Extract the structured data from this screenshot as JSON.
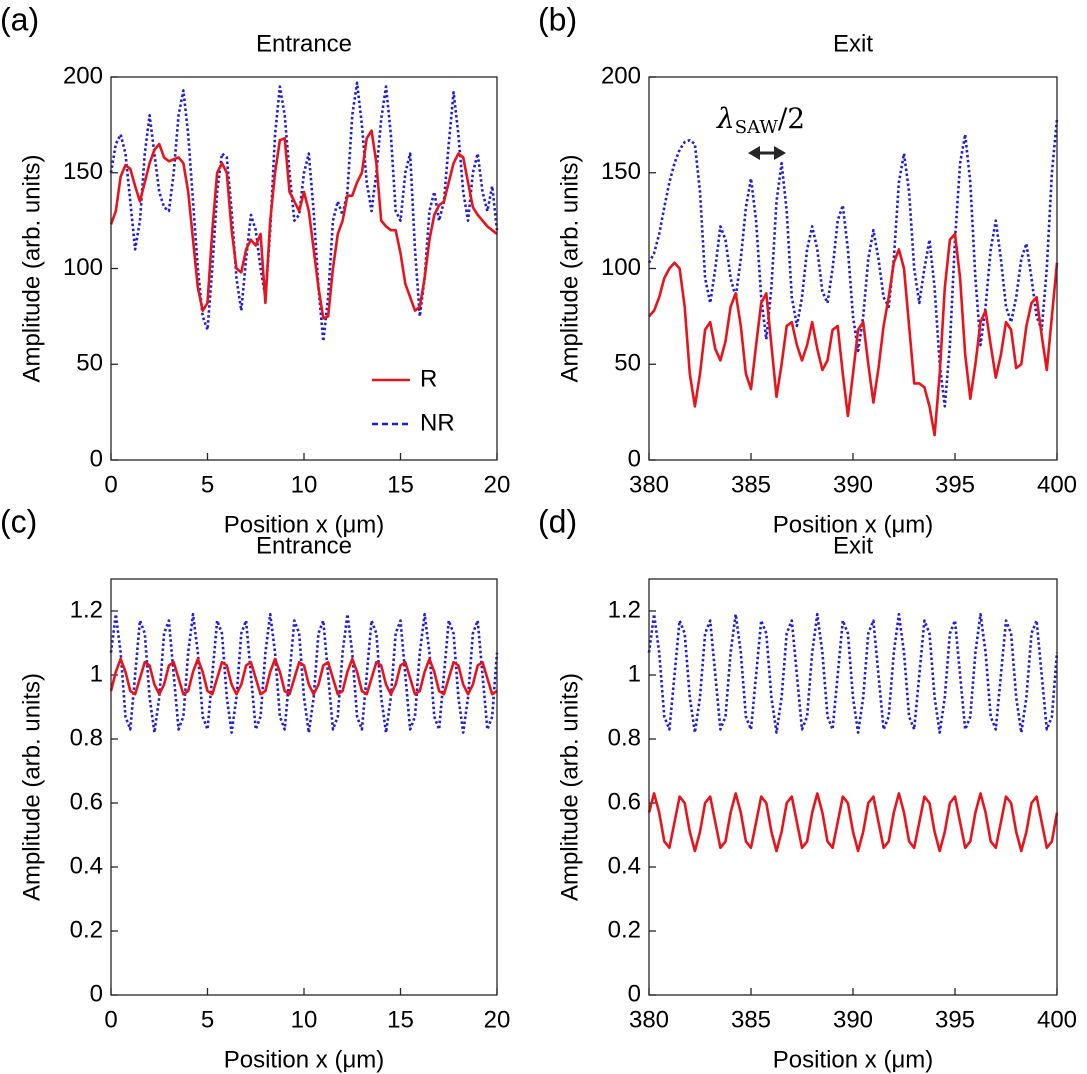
{
  "chart_data": [
    {
      "type": "line",
      "label": "(a)",
      "title": "Entrance",
      "xlabel": "Position x (μm)",
      "ylabel": "Amplitude (arb. units)",
      "xlim": [
        0,
        20
      ],
      "xticks": [
        0,
        5,
        10,
        15,
        20
      ],
      "ylim": [
        0,
        200
      ],
      "yticks": [
        0,
        50,
        100,
        150,
        200
      ],
      "legend": "lower right",
      "x": [
        0,
        0.25,
        0.5,
        0.75,
        1,
        1.25,
        1.5,
        1.75,
        2,
        2.25,
        2.5,
        2.75,
        3,
        3.25,
        3.5,
        3.75,
        4,
        4.25,
        4.5,
        4.75,
        5,
        5.25,
        5.5,
        5.75,
        6,
        6.25,
        6.5,
        6.75,
        7,
        7.25,
        7.5,
        7.75,
        8,
        8.25,
        8.5,
        8.75,
        9,
        9.25,
        9.5,
        9.75,
        10,
        10.25,
        10.5,
        10.75,
        11,
        11.25,
        11.5,
        11.75,
        12,
        12.25,
        12.5,
        12.75,
        13,
        13.25,
        13.5,
        13.75,
        14,
        14.25,
        14.5,
        14.75,
        15,
        15.25,
        15.5,
        15.75,
        16,
        16.25,
        16.5,
        16.75,
        17,
        17.25,
        17.5,
        17.75,
        18,
        18.25,
        18.5,
        18.75,
        19,
        19.25,
        19.5,
        19.75,
        20
      ],
      "series": [
        {
          "name": "R",
          "color": "#e8141c",
          "dash": "solid",
          "values": [
            123,
            130,
            148,
            154,
            152,
            143,
            135,
            145,
            155,
            162,
            165,
            158,
            156,
            157,
            158,
            155,
            140,
            115,
            90,
            78,
            82,
            120,
            150,
            155,
            150,
            120,
            100,
            98,
            110,
            115,
            112,
            118,
            82,
            125,
            150,
            167,
            168,
            140,
            135,
            130,
            140,
            130,
            110,
            90,
            74,
            75,
            100,
            118,
            125,
            138,
            138,
            145,
            150,
            168,
            172,
            155,
            125,
            122,
            120,
            120,
            108,
            92,
            85,
            78,
            80,
            95,
            115,
            128,
            133,
            135,
            145,
            155,
            160,
            158,
            145,
            132,
            128,
            125,
            122,
            120,
            118
          ]
        },
        {
          "name": "NR",
          "color": "#1f1fd0",
          "dash": "dotted",
          "values": [
            150,
            165,
            170,
            160,
            135,
            110,
            125,
            160,
            180,
            160,
            140,
            132,
            130,
            150,
            180,
            193,
            170,
            135,
            100,
            75,
            68,
            100,
            140,
            160,
            158,
            130,
            95,
            78,
            105,
            128,
            120,
            100,
            85,
            120,
            170,
            195,
            180,
            150,
            125,
            128,
            150,
            160,
            130,
            90,
            62,
            85,
            125,
            135,
            128,
            140,
            180,
            197,
            175,
            145,
            130,
            150,
            178,
            195,
            170,
            130,
            125,
            150,
            160,
            110,
            75,
            95,
            130,
            140,
            125,
            135,
            165,
            192,
            170,
            140,
            125,
            150,
            160,
            140,
            130,
            143,
            120
          ]
        }
      ]
    },
    {
      "type": "line",
      "label": "(b)",
      "title": "Exit",
      "xlabel": "Position x (μm)",
      "ylabel": "Amplitude (arb. units)",
      "xlim": [
        380,
        400
      ],
      "xticks": [
        380,
        385,
        390,
        395,
        400
      ],
      "ylim": [
        0,
        200
      ],
      "yticks": [
        0,
        50,
        100,
        150,
        200
      ],
      "annotation": [
        "λ",
        "SAW",
        "/2"
      ],
      "x": [
        380,
        380.25,
        380.5,
        380.75,
        381,
        381.25,
        381.5,
        381.75,
        382,
        382.25,
        382.5,
        382.75,
        383,
        383.25,
        383.5,
        383.75,
        384,
        384.25,
        384.5,
        384.75,
        385,
        385.25,
        385.5,
        385.75,
        386,
        386.25,
        386.5,
        386.75,
        387,
        387.25,
        387.5,
        387.75,
        388,
        388.25,
        388.5,
        388.75,
        389,
        389.25,
        389.5,
        389.75,
        390,
        390.25,
        390.5,
        390.75,
        391,
        391.25,
        391.5,
        391.75,
        392,
        392.25,
        392.5,
        392.75,
        393,
        393.25,
        393.5,
        393.75,
        394,
        394.25,
        394.5,
        394.75,
        395,
        395.25,
        395.5,
        395.75,
        396,
        396.25,
        396.5,
        396.75,
        397,
        397.25,
        397.5,
        397.75,
        398,
        398.25,
        398.5,
        398.75,
        399,
        399.25,
        399.5,
        399.75,
        400
      ],
      "series": [
        {
          "color": "#e8141c",
          "dash": "solid",
          "values": [
            75,
            78,
            85,
            95,
            100,
            103,
            100,
            80,
            45,
            28,
            45,
            68,
            72,
            58,
            52,
            62,
            80,
            87,
            70,
            45,
            37,
            60,
            82,
            87,
            60,
            33,
            50,
            70,
            72,
            60,
            52,
            60,
            72,
            58,
            47,
            52,
            68,
            70,
            45,
            23,
            45,
            68,
            72,
            50,
            30,
            48,
            70,
            85,
            103,
            110,
            100,
            70,
            40,
            40,
            38,
            28,
            13,
            45,
            90,
            115,
            118,
            95,
            55,
            32,
            50,
            72,
            78,
            60,
            43,
            55,
            72,
            68,
            48,
            50,
            70,
            82,
            85,
            65,
            47,
            75,
            103
          ]
        },
        {
          "color": "#1f1fd0",
          "dash": "dotted",
          "values": [
            103,
            108,
            118,
            132,
            145,
            155,
            162,
            166,
            167,
            165,
            140,
            95,
            82,
            100,
            122,
            115,
            95,
            85,
            105,
            132,
            147,
            125,
            85,
            63,
            90,
            135,
            155,
            130,
            85,
            70,
            85,
            110,
            122,
            110,
            88,
            82,
            100,
            125,
            133,
            110,
            75,
            57,
            75,
            105,
            120,
            105,
            85,
            80,
            105,
            145,
            160,
            140,
            100,
            82,
            100,
            115,
            90,
            50,
            28,
            60,
            115,
            155,
            170,
            145,
            95,
            60,
            80,
            110,
            125,
            105,
            80,
            72,
            85,
            105,
            113,
            95,
            75,
            68,
            100,
            150,
            178
          ]
        }
      ]
    },
    {
      "type": "line",
      "label": "(c)",
      "title": "Entrance",
      "xlabel": "Position x (μm)",
      "ylabel": "Amplitude (arb. units)",
      "xlim": [
        0,
        20
      ],
      "xticks": [
        0,
        5,
        10,
        15,
        20
      ],
      "ylim": [
        0,
        1.3
      ],
      "yticks": [
        0,
        0.2,
        0.4,
        0.6,
        0.8,
        1,
        1.2
      ],
      "x": [
        0,
        0.25,
        0.5,
        0.75,
        1,
        1.25,
        1.5,
        1.75,
        2,
        2.25,
        2.5,
        2.75,
        3,
        3.25,
        3.5,
        3.75,
        4,
        4.25,
        4.5,
        4.75,
        5,
        5.25,
        5.5,
        5.75,
        6,
        6.25,
        6.5,
        6.75,
        7,
        7.25,
        7.5,
        7.75,
        8,
        8.25,
        8.5,
        8.75,
        9,
        9.25,
        9.5,
        9.75,
        10,
        10.25,
        10.5,
        10.75,
        11,
        11.25,
        11.5,
        11.75,
        12,
        12.25,
        12.5,
        12.75,
        13,
        13.25,
        13.5,
        13.75,
        14,
        14.25,
        14.5,
        14.75,
        15,
        15.25,
        15.5,
        15.75,
        16,
        16.25,
        16.5,
        16.75,
        17,
        17.25,
        17.5,
        17.75,
        18,
        18.25,
        18.5,
        18.75,
        19,
        19.25,
        19.5,
        19.75,
        20
      ],
      "series": [
        {
          "color": "#e8141c",
          "dash": "solid",
          "values": [
            0.95,
            1.01,
            1.05,
            1.01,
            0.95,
            0.94,
            0.99,
            1.04,
            1.03,
            0.97,
            0.94,
            0.97,
            1.03,
            1.04,
            0.99,
            0.94,
            0.95,
            1.01,
            1.05,
            1.01,
            0.95,
            0.94,
            0.99,
            1.04,
            1.03,
            0.97,
            0.94,
            0.97,
            1.03,
            1.04,
            0.99,
            0.94,
            0.95,
            1.01,
            1.05,
            1.01,
            0.95,
            0.94,
            0.99,
            1.04,
            1.03,
            0.97,
            0.94,
            0.97,
            1.03,
            1.04,
            0.99,
            0.94,
            0.95,
            1.01,
            1.05,
            1.01,
            0.95,
            0.94,
            0.99,
            1.04,
            1.03,
            0.97,
            0.94,
            0.97,
            1.03,
            1.04,
            0.99,
            0.94,
            0.95,
            1.01,
            1.05,
            1.01,
            0.95,
            0.94,
            0.99,
            1.04,
            1.03,
            0.97,
            0.94,
            0.97,
            1.03,
            1.04,
            0.99,
            0.94,
            0.95
          ]
        },
        {
          "color": "#1f1fd0",
          "dash": "dotted",
          "values": [
            1.07,
            1.19,
            1.07,
            0.87,
            0.83,
            1.0,
            1.17,
            1.13,
            0.93,
            0.82,
            0.93,
            1.13,
            1.17,
            1.0,
            0.83,
            0.87,
            1.07,
            1.19,
            1.07,
            0.87,
            0.83,
            1.0,
            1.17,
            1.13,
            0.93,
            0.82,
            0.93,
            1.13,
            1.17,
            1.0,
            0.83,
            0.87,
            1.07,
            1.19,
            1.07,
            0.87,
            0.83,
            1.0,
            1.17,
            1.13,
            0.93,
            0.82,
            0.93,
            1.13,
            1.17,
            1.0,
            0.83,
            0.87,
            1.07,
            1.19,
            1.07,
            0.87,
            0.83,
            1.0,
            1.17,
            1.13,
            0.93,
            0.82,
            0.93,
            1.13,
            1.17,
            1.0,
            0.83,
            0.87,
            1.07,
            1.19,
            1.07,
            0.87,
            0.83,
            1.0,
            1.17,
            1.13,
            0.93,
            0.82,
            0.93,
            1.13,
            1.17,
            1.0,
            0.83,
            0.87,
            1.07
          ]
        }
      ]
    },
    {
      "type": "line",
      "label": "(d)",
      "title": "Exit",
      "xlabel": "Position x (μm)",
      "ylabel": "Amplitude (arb. units)",
      "xlim": [
        380,
        400
      ],
      "xticks": [
        380,
        385,
        390,
        395,
        400
      ],
      "ylim": [
        0,
        1.3
      ],
      "yticks": [
        0,
        0.2,
        0.4,
        0.6,
        0.8,
        1,
        1.2
      ],
      "x": [
        380,
        380.25,
        380.5,
        380.75,
        381,
        381.25,
        381.5,
        381.75,
        382,
        382.25,
        382.5,
        382.75,
        383,
        383.25,
        383.5,
        383.75,
        384,
        384.25,
        384.5,
        384.75,
        385,
        385.25,
        385.5,
        385.75,
        386,
        386.25,
        386.5,
        386.75,
        387,
        387.25,
        387.5,
        387.75,
        388,
        388.25,
        388.5,
        388.75,
        389,
        389.25,
        389.5,
        389.75,
        390,
        390.25,
        390.5,
        390.75,
        391,
        391.25,
        391.5,
        391.75,
        392,
        392.25,
        392.5,
        392.75,
        393,
        393.25,
        393.5,
        393.75,
        394,
        394.25,
        394.5,
        394.75,
        395,
        395.25,
        395.5,
        395.75,
        396,
        396.25,
        396.5,
        396.75,
        397,
        397.25,
        397.5,
        397.75,
        398,
        398.25,
        398.5,
        398.75,
        399,
        399.25,
        399.5,
        399.75,
        400
      ],
      "series": [
        {
          "color": "#e8141c",
          "dash": "solid",
          "values": [
            0.57,
            0.63,
            0.57,
            0.48,
            0.46,
            0.54,
            0.62,
            0.6,
            0.51,
            0.45,
            0.51,
            0.6,
            0.62,
            0.54,
            0.46,
            0.48,
            0.57,
            0.63,
            0.57,
            0.48,
            0.46,
            0.54,
            0.62,
            0.6,
            0.51,
            0.45,
            0.51,
            0.6,
            0.62,
            0.54,
            0.46,
            0.48,
            0.57,
            0.63,
            0.57,
            0.48,
            0.46,
            0.54,
            0.62,
            0.6,
            0.51,
            0.45,
            0.51,
            0.6,
            0.62,
            0.54,
            0.46,
            0.48,
            0.57,
            0.63,
            0.57,
            0.48,
            0.46,
            0.54,
            0.62,
            0.6,
            0.51,
            0.45,
            0.51,
            0.6,
            0.62,
            0.54,
            0.46,
            0.48,
            0.57,
            0.63,
            0.57,
            0.48,
            0.46,
            0.54,
            0.62,
            0.6,
            0.51,
            0.45,
            0.51,
            0.6,
            0.62,
            0.54,
            0.46,
            0.48,
            0.57
          ]
        },
        {
          "color": "#1f1fd0",
          "dash": "dotted",
          "values": [
            1.07,
            1.19,
            1.07,
            0.87,
            0.83,
            1.0,
            1.17,
            1.13,
            0.93,
            0.82,
            0.93,
            1.13,
            1.17,
            1.0,
            0.83,
            0.87,
            1.07,
            1.19,
            1.07,
            0.87,
            0.83,
            1.0,
            1.17,
            1.13,
            0.93,
            0.82,
            0.93,
            1.13,
            1.17,
            1.0,
            0.83,
            0.87,
            1.07,
            1.19,
            1.07,
            0.87,
            0.83,
            1.0,
            1.17,
            1.13,
            0.93,
            0.82,
            0.93,
            1.13,
            1.17,
            1.0,
            0.83,
            0.87,
            1.07,
            1.19,
            1.07,
            0.87,
            0.83,
            1.0,
            1.17,
            1.13,
            0.93,
            0.82,
            0.93,
            1.13,
            1.17,
            1.0,
            0.83,
            0.87,
            1.07,
            1.19,
            1.07,
            0.87,
            0.83,
            1.0,
            1.17,
            1.13,
            0.93,
            0.82,
            0.93,
            1.13,
            1.17,
            1.0,
            0.83,
            0.87,
            1.07
          ]
        }
      ]
    }
  ]
}
